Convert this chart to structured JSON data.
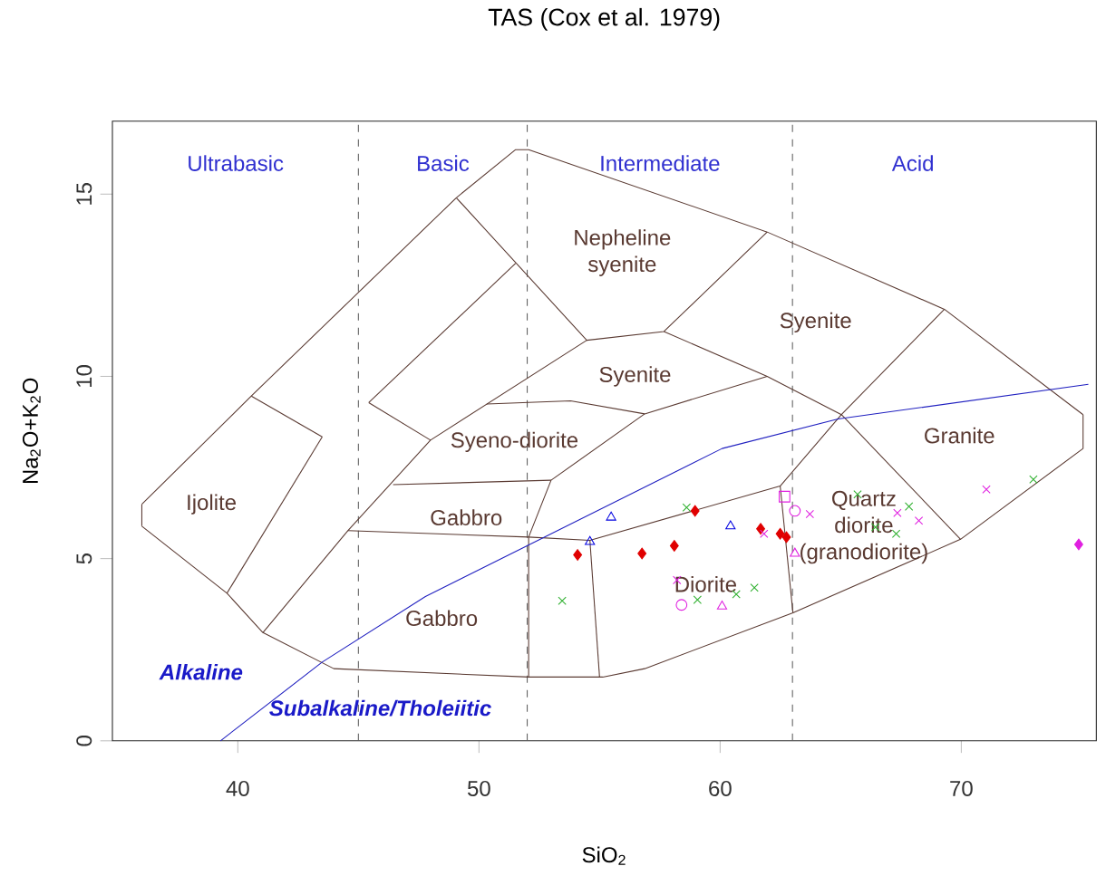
{
  "chart_data": {
    "type": "scatter",
    "title": "TAS (Cox et al. 1979)",
    "xlabel": "SiO$_{2}$",
    "ylabel": "Na$_{2}$O+K$_{2}$O",
    "xlim": [
      34.8,
      75.6
    ],
    "ylim": [
      0,
      17
    ],
    "xticks": [
      40,
      50,
      60,
      70
    ],
    "yticks": [
      0,
      5,
      10,
      15
    ],
    "ref_lines": [
      {
        "axis": "x",
        "value": 45,
        "line_style": "dashed",
        "color": "#606060"
      },
      {
        "axis": "x",
        "value": 52,
        "line_style": "dashed",
        "color": "#606060"
      },
      {
        "axis": "x",
        "value": 63,
        "line_style": "dashed",
        "color": "#606060"
      }
    ],
    "series": [
      {
        "type": "line",
        "color": "#5a3a32",
        "x": [
          36.02,
          40.56,
          49.06,
          51.52,
          52.06,
          61.95,
          69.3,
          75.05
        ],
        "values": [
          6.49,
          9.46,
          14.9,
          16.22,
          16.22,
          13.96,
          11.84,
          8.95
        ]
      },
      {
        "type": "line",
        "color": "#5a3a32",
        "x": [
          36.02,
          39.55,
          41.04,
          43.98,
          52.06,
          55.13,
          56.87,
          63.02,
          69.97,
          75.05
        ],
        "values": [
          5.89,
          4.05,
          2.97,
          1.98,
          1.75,
          1.75,
          1.98,
          3.51,
          5.53,
          8.02
        ]
      },
      {
        "type": "line",
        "color": "#5a3a32",
        "x": [
          36.02,
          36.02
        ],
        "values": [
          5.89,
          6.49
        ]
      },
      {
        "type": "line",
        "color": "#5a3a32",
        "x": [
          75.05,
          75.05
        ],
        "values": [
          8.02,
          8.95
        ]
      },
      {
        "type": "line",
        "color": "#5a3a32",
        "x": [
          39.55,
          43.5
        ],
        "values": [
          4.05,
          8.34
        ]
      },
      {
        "type": "line",
        "color": "#5a3a32",
        "x": [
          40.56,
          43.5
        ],
        "values": [
          9.46,
          8.34
        ]
      },
      {
        "type": "line",
        "color": "#5a3a32",
        "x": [
          41.04,
          44.57,
          47.99,
          54.47
        ],
        "values": [
          2.97,
          5.77,
          8.25,
          10.99
        ]
      },
      {
        "type": "line",
        "color": "#5a3a32",
        "x": [
          49.06,
          54.47,
          57.67,
          61.95
        ],
        "values": [
          14.9,
          10.99,
          11.23,
          13.96
        ]
      },
      {
        "type": "line",
        "color": "#5a3a32",
        "x": [
          45.43,
          51.52
        ],
        "values": [
          9.28,
          13.1
        ]
      },
      {
        "type": "line",
        "color": "#5a3a32",
        "x": [
          45.43,
          47.99
        ],
        "values": [
          9.28,
          8.25
        ]
      },
      {
        "type": "line",
        "color": "#5a3a32",
        "x": [
          57.67,
          61.95,
          65.03,
          69.3
        ],
        "values": [
          11.23,
          10.0,
          8.95,
          11.84
        ]
      },
      {
        "type": "line",
        "color": "#5a3a32",
        "x": [
          65.03,
          69.97
        ],
        "values": [
          8.95,
          5.53
        ]
      },
      {
        "type": "line",
        "color": "#5a3a32",
        "x": [
          44.57,
          52.06,
          54.6,
          62.49,
          65.03
        ],
        "values": [
          5.77,
          5.59,
          5.5,
          6.99,
          8.95
        ]
      },
      {
        "type": "line",
        "color": "#5a3a32",
        "x": [
          62.49,
          63.02
        ],
        "values": [
          6.99,
          3.51
        ]
      },
      {
        "type": "line",
        "color": "#5a3a32",
        "x": [
          54.6,
          55.0
        ],
        "values": [
          5.5,
          1.75
        ]
      },
      {
        "type": "line",
        "color": "#5a3a32",
        "x": [
          52.06,
          52.06,
          52.99,
          56.87,
          61.95
        ],
        "values": [
          1.75,
          5.59,
          7.15,
          8.97,
          10.0
        ]
      },
      {
        "type": "line",
        "color": "#5a3a32",
        "x": [
          46.44,
          52.99
        ],
        "values": [
          7.03,
          7.15
        ]
      },
      {
        "type": "line",
        "color": "#5a3a32",
        "x": [
          50.32,
          53.8,
          56.87
        ],
        "values": [
          9.24,
          9.33,
          8.97
        ]
      },
      {
        "type": "line",
        "color": "#2020c0",
        "x": [
          39.28,
          43.5,
          47.78,
          60.08,
          64.89,
          75.27
        ],
        "values": [
          0,
          2.16,
          3.96,
          8.02,
          8.83,
          9.78
        ]
      },
      {
        "marker": "diamond",
        "color": "#e00000",
        "x": [
          54.09,
          56.76,
          58.1,
          58.96,
          61.68,
          62.49,
          62.75
        ],
        "values": [
          5.1,
          5.14,
          5.35,
          6.31,
          5.82,
          5.68,
          5.59
        ]
      },
      {
        "marker": "triangle",
        "color": "#0000e0",
        "x": [
          54.6,
          55.48,
          60.43
        ],
        "values": [
          5.46,
          6.13,
          5.89
        ]
      },
      {
        "marker": "cross",
        "color": "#30b030",
        "x": [
          53.45,
          58.61,
          59.06,
          60.67,
          61.42,
          65.7,
          66.44,
          67.3,
          67.83,
          72.99
        ],
        "values": [
          3.84,
          6.4,
          3.87,
          4.02,
          4.2,
          6.76,
          5.86,
          5.68,
          6.43,
          7.17
        ]
      },
      {
        "marker": "circle",
        "color": "#e020e0",
        "x": [
          63.1,
          58.4
        ],
        "values": [
          6.31,
          3.73
        ]
      },
      {
        "marker": "triangle",
        "color": "#e020e0",
        "x": [
          60.08,
          63.1
        ],
        "values": [
          3.69,
          5.14
        ]
      },
      {
        "marker": "square",
        "color": "#e020e0",
        "x": [
          62.67
        ],
        "values": [
          6.7
        ]
      },
      {
        "marker": "cross",
        "color": "#e020e0",
        "x": [
          61.82,
          71.04,
          67.35,
          58.21,
          63.72,
          68.24
        ],
        "values": [
          5.68,
          6.9,
          6.25,
          4.41,
          6.22,
          6.04
        ]
      },
      {
        "marker": "diamond",
        "color": "#e020e0",
        "x": [
          74.87
        ],
        "values": [
          5.39
        ]
      }
    ],
    "annotations": [
      "Ultrabasic",
      "Basic",
      "Intermediate",
      "Acid",
      "Nepheline syenite",
      "Syenite",
      "Syenite",
      "Syeno-diorite",
      "Gabbro",
      "Gabbro",
      "Ijolite",
      "Diorite",
      "Quartz diorite (granodiorite)",
      "Granite",
      "Alkaline",
      "Subalkaline/Tholeiitic"
    ]
  }
}
